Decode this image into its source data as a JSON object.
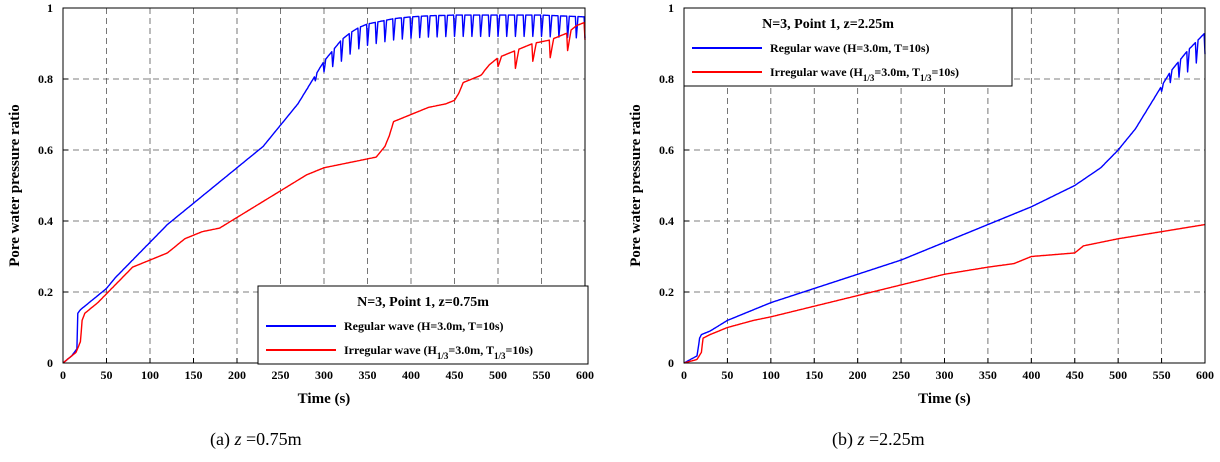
{
  "chart_data": [
    {
      "type": "line",
      "caption_label": "(a)",
      "caption_var": "z",
      "caption_value": "=0.75m",
      "xlabel": "Time (s)",
      "ylabel": "Pore water pressure ratio",
      "xlim": [
        0,
        600
      ],
      "ylim": [
        0,
        1
      ],
      "x_ticks": [
        "0",
        "50",
        "100",
        "150",
        "200",
        "250",
        "300",
        "350",
        "400",
        "450",
        "500",
        "550",
        "600"
      ],
      "y_ticks": [
        "0",
        "0.2",
        "0.4",
        "0.6",
        "0.8",
        "1"
      ],
      "grid": true,
      "legend_position": "bottom-right",
      "legend_title": "N=3, Point 1, z=0.75m",
      "series": [
        {
          "name": "Regular wave (H=3.0m, T=10s)",
          "color": "#0000ff",
          "x": [
            0,
            10,
            16,
            17,
            20,
            25,
            30,
            40,
            50,
            60,
            80,
            100,
            120,
            150,
            180,
            200,
            230,
            250,
            260,
            270,
            280,
            290,
            300,
            310,
            320,
            330,
            340,
            350,
            370,
            380,
            400,
            420,
            450,
            500,
            550,
            600
          ],
          "y": [
            0,
            0.02,
            0.04,
            0.14,
            0.15,
            0.16,
            0.17,
            0.19,
            0.21,
            0.24,
            0.29,
            0.34,
            0.39,
            0.45,
            0.51,
            0.55,
            0.61,
            0.67,
            0.7,
            0.73,
            0.77,
            0.81,
            0.85,
            0.88,
            0.91,
            0.93,
            0.945,
            0.955,
            0.965,
            0.97,
            0.975,
            0.978,
            0.98,
            0.98,
            0.98,
            0.975
          ],
          "oscillation": {
            "start": 280,
            "end": 600,
            "period": 10,
            "amplitude": 0.06
          }
        },
        {
          "name": "Irregular wave (H1/3=3.0m, T1/3=10s)",
          "name_parts": {
            "pre": "Irregular wave (H",
            "sub1": "1/3",
            "mid": "=3.0m, T",
            "sub2": "1/3",
            "post": "=10s)"
          },
          "color": "#ff0000",
          "x": [
            0,
            15,
            20,
            22,
            25,
            30,
            40,
            60,
            80,
            100,
            120,
            140,
            160,
            180,
            200,
            220,
            240,
            260,
            280,
            300,
            320,
            340,
            360,
            370,
            375,
            380,
            400,
            420,
            440,
            450,
            455,
            460,
            480,
            490,
            500,
            520,
            540,
            560,
            580,
            590,
            600
          ],
          "y": [
            0,
            0.03,
            0.06,
            0.12,
            0.14,
            0.15,
            0.17,
            0.22,
            0.27,
            0.29,
            0.31,
            0.35,
            0.37,
            0.38,
            0.41,
            0.44,
            0.47,
            0.5,
            0.53,
            0.55,
            0.56,
            0.57,
            0.58,
            0.61,
            0.64,
            0.68,
            0.7,
            0.72,
            0.73,
            0.74,
            0.76,
            0.79,
            0.81,
            0.84,
            0.86,
            0.88,
            0.9,
            0.91,
            0.93,
            0.95,
            0.96
          ],
          "oscillation": {
            "start": 480,
            "end": 600,
            "period": 20,
            "amplitude": 0.05
          }
        }
      ]
    },
    {
      "type": "line",
      "caption_label": "(b)",
      "caption_var": "z",
      "caption_value": "=2.25m",
      "xlabel": "Time (s)",
      "ylabel": "Pore water pressure ratio",
      "xlim": [
        0,
        600
      ],
      "ylim": [
        0,
        1
      ],
      "x_ticks": [
        "0",
        "50",
        "100",
        "150",
        "200",
        "250",
        "300",
        "350",
        "400",
        "450",
        "500",
        "550",
        "600"
      ],
      "y_ticks": [
        "0",
        "0.2",
        "0.4",
        "0.6",
        "0.8",
        "1"
      ],
      "grid": true,
      "legend_position": "top-left",
      "legend_title": "N=3, Point 1, z=2.25m",
      "series": [
        {
          "name": "Regular wave (H=3.0m, T=10s)",
          "color": "#0000ff",
          "x": [
            0,
            15,
            18,
            20,
            25,
            30,
            50,
            80,
            100,
            150,
            200,
            250,
            300,
            350,
            400,
            450,
            480,
            500,
            520,
            540,
            550,
            560,
            580,
            600
          ],
          "y": [
            0,
            0.02,
            0.07,
            0.08,
            0.085,
            0.09,
            0.12,
            0.15,
            0.17,
            0.21,
            0.25,
            0.29,
            0.34,
            0.39,
            0.44,
            0.5,
            0.55,
            0.6,
            0.66,
            0.74,
            0.78,
            0.82,
            0.88,
            0.93
          ],
          "oscillation": {
            "start": 540,
            "end": 600,
            "period": 10,
            "amplitude": 0.06
          }
        },
        {
          "name": "Irregular wave (H1/3=3.0m, T1/3=10s)",
          "name_parts": {
            "pre": "Irregular wave (H",
            "sub1": "1/3",
            "mid": "=3.0m, T",
            "sub2": "1/3",
            "post": "=10s)"
          },
          "color": "#ff0000",
          "x": [
            0,
            15,
            20,
            22,
            30,
            50,
            80,
            100,
            150,
            200,
            250,
            300,
            350,
            380,
            400,
            450,
            460,
            500,
            550,
            600
          ],
          "y": [
            0,
            0.01,
            0.03,
            0.07,
            0.08,
            0.1,
            0.12,
            0.13,
            0.16,
            0.19,
            0.22,
            0.25,
            0.27,
            0.28,
            0.3,
            0.31,
            0.33,
            0.35,
            0.37,
            0.39
          ],
          "oscillation": {
            "start": 600,
            "end": 600,
            "period": 20,
            "amplitude": 0
          }
        }
      ]
    }
  ]
}
